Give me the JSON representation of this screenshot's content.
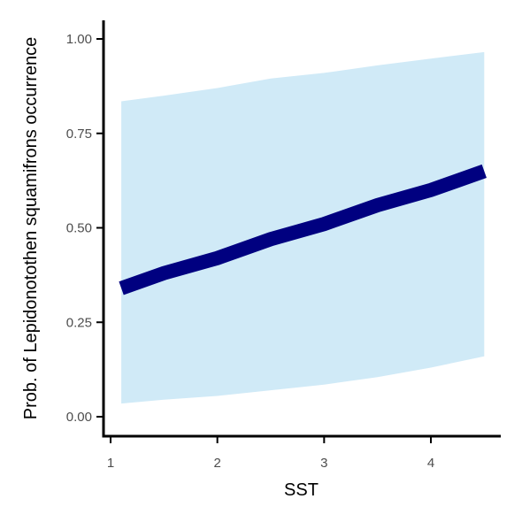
{
  "chart_data": {
    "type": "line",
    "xlabel": "SST",
    "ylabel": "Prob. of  Lepidonotothen squamifrons  occurrence",
    "xlim": [
      1.0,
      4.55
    ],
    "ylim": [
      0.0,
      1.05
    ],
    "x_ticks": [
      1,
      2,
      3,
      4
    ],
    "x_tick_labels": [
      "1",
      "2",
      "3",
      "4"
    ],
    "y_ticks": [
      0.0,
      0.25,
      0.5,
      0.75,
      1.0
    ],
    "y_tick_labels": [
      "0.00",
      "0.25",
      "0.50",
      "0.75",
      "1.00"
    ],
    "grid": false,
    "series": [
      {
        "x": [
          1.1,
          1.5,
          2.0,
          2.5,
          3.0,
          3.5,
          4.0,
          4.5
        ],
        "y": [
          0.34,
          0.38,
          0.42,
          0.47,
          0.51,
          0.56,
          0.6,
          0.65
        ],
        "lower": [
          0.035,
          0.045,
          0.055,
          0.07,
          0.085,
          0.105,
          0.13,
          0.16
        ],
        "upper": [
          0.835,
          0.85,
          0.87,
          0.895,
          0.91,
          0.93,
          0.948,
          0.965
        ]
      }
    ],
    "colors": {
      "line": "#000080",
      "ribbon": "#d0eaf7",
      "axis": "#000000"
    }
  }
}
